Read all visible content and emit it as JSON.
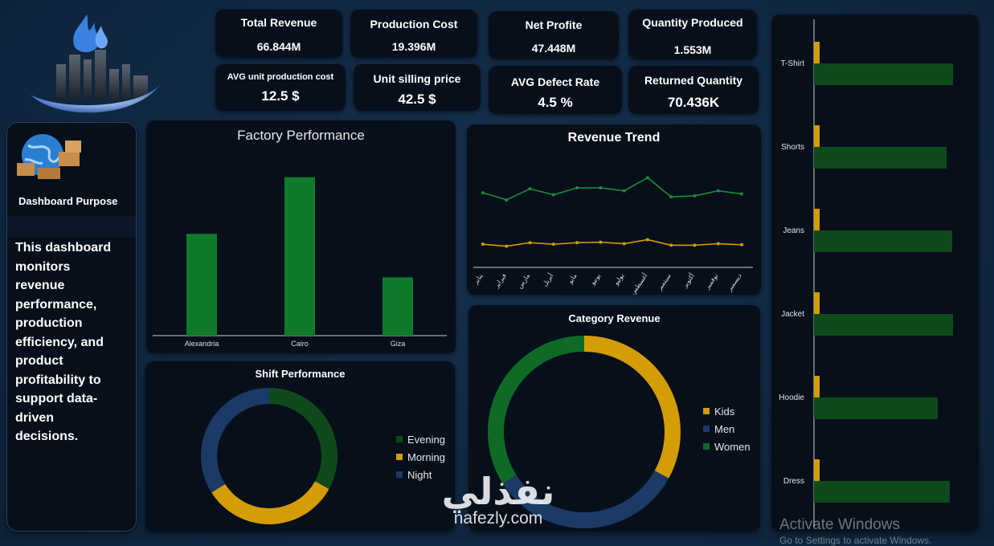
{
  "kpis": [
    {
      "title": "Total Revenue",
      "value": "66.844M"
    },
    {
      "title": "Production Cost",
      "value": "19.396M"
    },
    {
      "title": "Net Profite",
      "value": "47.448M"
    },
    {
      "title": "Quantity Produced",
      "value": "1.553M"
    },
    {
      "title": "AVG unit production cost",
      "value": "12.5 $"
    },
    {
      "title": "Unit silling price",
      "value": "42.5 $"
    },
    {
      "title": "AVG Defect Rate",
      "value": "4.5 %"
    },
    {
      "title": "Returned Quantity",
      "value": "70.436K"
    }
  ],
  "purpose": {
    "heading": "Dashboard Purpose",
    "text": "This dashboard monitors revenue performance, production efficiency, and product profitability to support data-driven decisions."
  },
  "colors": {
    "green": "#0f7a2a",
    "darkgreen": "#0e4a1c",
    "gold": "#d49c06",
    "navy": "#1b3a66"
  },
  "watermark": {
    "arabic": "نفذلي",
    "latin": "nafezly.com"
  },
  "windows": {
    "line1": "Activate Windows",
    "line2": "Go to Settings to activate Windows."
  },
  "chart_data": [
    {
      "type": "bar",
      "title": "Factory Performance",
      "categories": [
        "Alexandria",
        "Cairo",
        "Giza"
      ],
      "values": [
        131,
        204,
        75
      ],
      "ylim": [
        0,
        215
      ],
      "color": "#0f7a2a"
    },
    {
      "type": "line",
      "title": "Revenue Trend",
      "categories": [
        "يناير",
        "فبراير",
        "مارس",
        "أبريل",
        "مايو",
        "يونيو",
        "يوليو",
        "أغسطس",
        "سبتمبر",
        "أكتوبر",
        "نوفمبر",
        "ديسمبر"
      ],
      "series": [
        {
          "values": [
            5.9,
            5.2,
            6.3,
            5.7,
            6.4,
            6.4,
            6.1,
            7.4,
            5.5,
            5.6,
            6.1,
            5.8
          ],
          "color": "#1f8a3a"
        },
        {
          "values": [
            0.8,
            0.6,
            0.95,
            0.8,
            0.95,
            1.0,
            0.85,
            1.25,
            0.7,
            0.7,
            0.85,
            0.75
          ],
          "color": "#d49c06"
        }
      ],
      "ylim": [
        -1.5,
        9.5
      ]
    },
    {
      "type": "pie",
      "title": "Shift Performance",
      "labels": [
        "Evening",
        "Morning",
        "Night"
      ],
      "values": [
        33,
        33,
        34
      ],
      "colors": [
        "#0e4a1c",
        "#d49c06",
        "#1b3a66"
      ]
    },
    {
      "type": "pie",
      "title": "Category Revenue",
      "labels": [
        "Kids",
        "Men",
        "Women"
      ],
      "values": [
        33,
        33,
        34
      ],
      "colors": [
        "#d49c06",
        "#1b3a66",
        "#0f6a26"
      ]
    },
    {
      "type": "bar",
      "orientation": "horizontal",
      "categories": [
        "T-Shirt",
        "Shorts",
        "Jeans",
        "Jacket",
        "Hoodie",
        "Dress"
      ],
      "series": [
        {
          "values": [
            7,
            7,
            7,
            7,
            7,
            7
          ],
          "color": "#d49c06"
        },
        {
          "values": [
            173,
            165,
            172,
            173,
            154,
            169
          ],
          "color": "#0e4a1c"
        }
      ],
      "xlim": [
        0,
        190
      ]
    }
  ]
}
